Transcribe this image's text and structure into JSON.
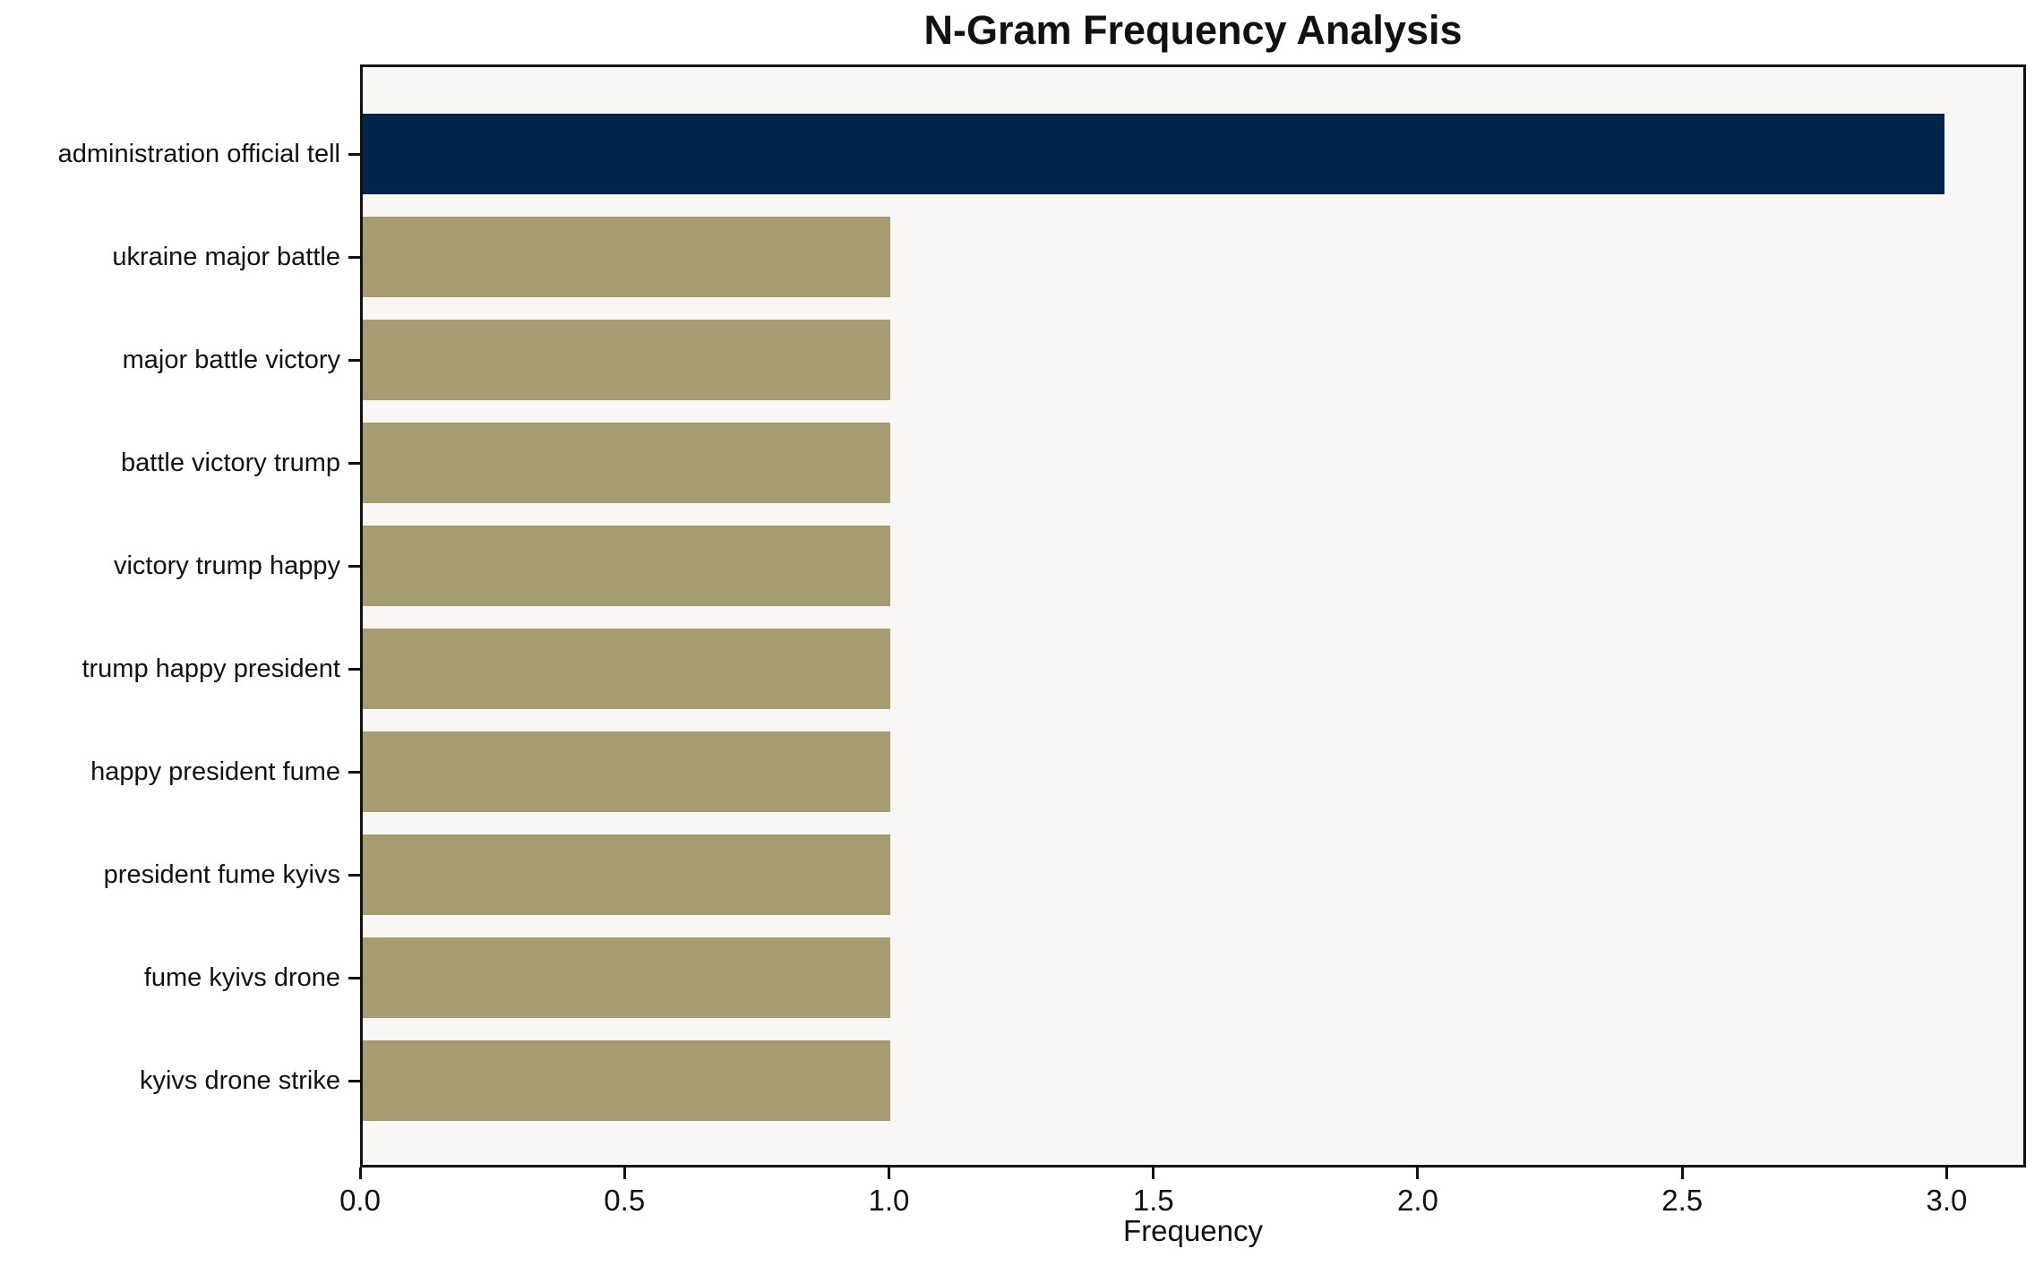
{
  "chart_data": {
    "type": "bar",
    "orientation": "horizontal",
    "title": "N-Gram Frequency Analysis",
    "xlabel": "Frequency",
    "ylabel": "",
    "categories": [
      "administration official tell",
      "ukraine major battle",
      "major battle victory",
      "battle victory trump",
      "victory trump happy",
      "trump happy president",
      "happy president fume",
      "president fume kyivs",
      "fume kyivs drone",
      "kyivs drone strike"
    ],
    "values": [
      3,
      1,
      1,
      1,
      1,
      1,
      1,
      1,
      1,
      1
    ],
    "bar_colors": [
      "#02254C",
      "#A69C71",
      "#A69C71",
      "#A69C71",
      "#A69C71",
      "#A69C71",
      "#A69C71",
      "#A69C71",
      "#A69C71",
      "#A69C71"
    ],
    "xlim": [
      0,
      3.15
    ],
    "xticks": [
      0,
      0.5,
      1,
      1.5,
      2,
      2.5,
      3
    ],
    "xtick_labels": [
      "0.0",
      "0.5",
      "1.0",
      "1.5",
      "2.0",
      "2.5",
      "3.0"
    ],
    "grid": false,
    "legend_position": "none",
    "colors": {
      "highlight_bar": "#02254C",
      "default_bar": "#A69C71",
      "plot_background": "#F8F7F5",
      "figure_background": "#FFFFFF",
      "spine": "#111111",
      "text": "#111111"
    }
  }
}
